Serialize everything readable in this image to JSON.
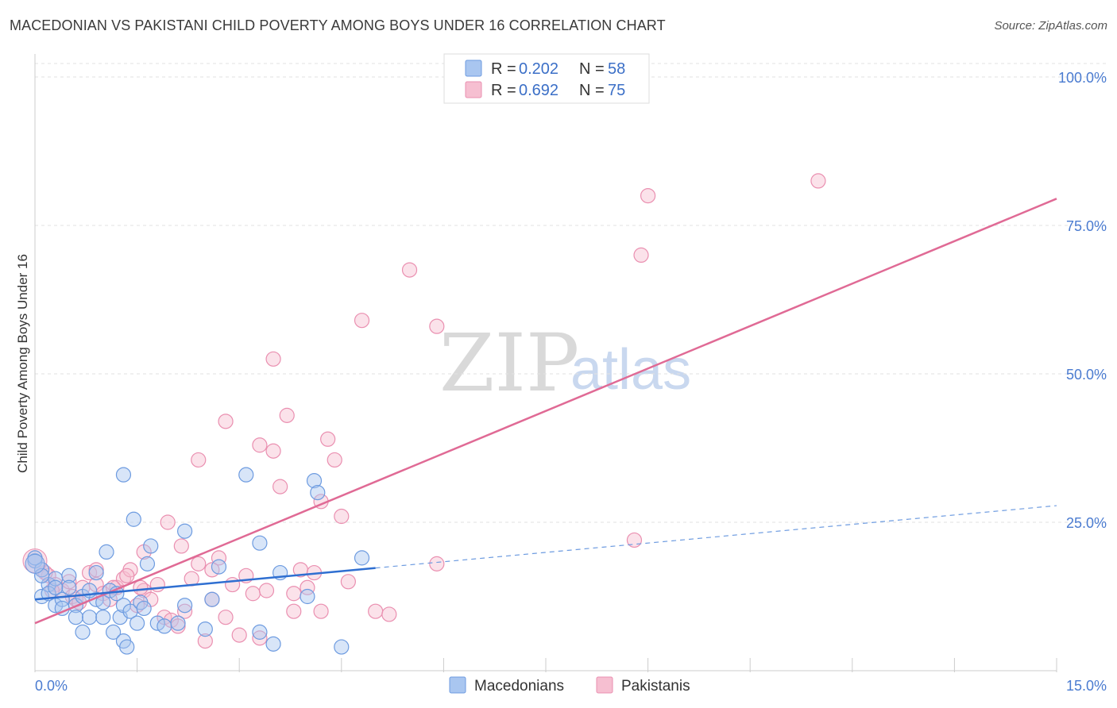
{
  "title": "MACEDONIAN VS PAKISTANI CHILD POVERTY AMONG BOYS UNDER 16 CORRELATION CHART",
  "source": "Source: ZipAtlas.com",
  "watermark": {
    "zip": "ZIP",
    "atlas": "atlas"
  },
  "colors": {
    "blue_fill": "#a9c6f0",
    "blue_stroke": "#6d9be0",
    "blue_line": "#2f6fd1",
    "pink_fill": "#f6bfd1",
    "pink_stroke": "#ea8fb0",
    "pink_line": "#e06a95",
    "accent_text": "#4a7bd0"
  },
  "legend": {
    "rows": [
      {
        "r_label": "R =",
        "r_value": "0.202",
        "n_label": "N =",
        "n_value": "58"
      },
      {
        "r_label": "R =",
        "r_value": "0.692",
        "n_label": "N =",
        "n_value": "75"
      }
    ]
  },
  "bottom_legend": {
    "series1": "Macedonians",
    "series2": "Pakistanis"
  },
  "chart_data": {
    "type": "scatter",
    "title": "MACEDONIAN VS PAKISTANI CHILD POVERTY AMONG BOYS UNDER 16 CORRELATION CHART",
    "xlabel": "",
    "ylabel": "Child Poverty Among Boys Under 16",
    "xlim": [
      0,
      15
    ],
    "ylim": [
      0,
      100
    ],
    "x_tick_labels": [
      "0.0%",
      "15.0%"
    ],
    "y_tick_labels": [
      "100.0%",
      "75.0%",
      "50.0%",
      "25.0%"
    ],
    "y_ticks": [
      100,
      75,
      50,
      25
    ],
    "series": [
      {
        "name": "Macedonians",
        "R": 0.202,
        "N": 58,
        "trend": {
          "x0": 0,
          "y0": 12.0,
          "x1": 5.0,
          "y1": 17.3,
          "dashed_to_x": 15,
          "dashed_to_y": 27.8
        },
        "points": [
          [
            0.0,
            18.5
          ],
          [
            0.1,
            17.0
          ],
          [
            0.1,
            12.5
          ],
          [
            0.2,
            14.5
          ],
          [
            0.2,
            13.0
          ],
          [
            0.3,
            11.0
          ],
          [
            0.3,
            15.5
          ],
          [
            0.4,
            12.0
          ],
          [
            0.4,
            10.5
          ],
          [
            0.5,
            16.0
          ],
          [
            0.5,
            14.0
          ],
          [
            0.6,
            11.0
          ],
          [
            0.6,
            9.0
          ],
          [
            0.7,
            12.5
          ],
          [
            0.7,
            6.5
          ],
          [
            0.8,
            9.0
          ],
          [
            0.9,
            16.5
          ],
          [
            0.9,
            12.0
          ],
          [
            1.0,
            9.0
          ],
          [
            1.0,
            11.5
          ],
          [
            1.05,
            20.0
          ],
          [
            1.1,
            13.5
          ],
          [
            1.15,
            6.5
          ],
          [
            1.2,
            13.0
          ],
          [
            1.25,
            9.0
          ],
          [
            1.3,
            5.0
          ],
          [
            1.3,
            11.0
          ],
          [
            1.3,
            33.0
          ],
          [
            1.35,
            4.0
          ],
          [
            1.4,
            10.0
          ],
          [
            1.45,
            25.5
          ],
          [
            1.5,
            8.0
          ],
          [
            1.55,
            11.5
          ],
          [
            1.6,
            10.5
          ],
          [
            1.65,
            18.0
          ],
          [
            1.7,
            21.0
          ],
          [
            1.8,
            8.0
          ],
          [
            1.9,
            7.5
          ],
          [
            2.1,
            8.0
          ],
          [
            2.2,
            11.0
          ],
          [
            2.2,
            23.5
          ],
          [
            2.5,
            7.0
          ],
          [
            2.6,
            12.0
          ],
          [
            2.7,
            17.5
          ],
          [
            3.1,
            33.0
          ],
          [
            3.3,
            6.5
          ],
          [
            3.3,
            21.5
          ],
          [
            3.5,
            4.5
          ],
          [
            3.6,
            16.5
          ],
          [
            4.0,
            12.5
          ],
          [
            4.1,
            32.0
          ],
          [
            4.15,
            30.0
          ],
          [
            4.5,
            4.0
          ],
          [
            4.8,
            19.0
          ],
          [
            0.0,
            19.0
          ],
          [
            0.1,
            16.0
          ],
          [
            0.3,
            14.0
          ],
          [
            0.8,
            13.5
          ]
        ]
      },
      {
        "name": "Pakistanis",
        "R": 0.692,
        "N": 75,
        "trend": {
          "x0": 0,
          "y0": 8.0,
          "x1": 15,
          "y1": 79.5
        },
        "points": [
          [
            0.0,
            18.5
          ],
          [
            0.1,
            17.0
          ],
          [
            0.2,
            16.0
          ],
          [
            0.3,
            14.5
          ],
          [
            0.4,
            13.5
          ],
          [
            0.5,
            15.0
          ],
          [
            0.6,
            12.0
          ],
          [
            0.7,
            14.0
          ],
          [
            0.8,
            16.5
          ],
          [
            0.9,
            14.5
          ],
          [
            1.0,
            13.0
          ],
          [
            1.1,
            12.0
          ],
          [
            1.2,
            14.0
          ],
          [
            1.3,
            15.5
          ],
          [
            1.4,
            17.0
          ],
          [
            1.5,
            11.0
          ],
          [
            1.6,
            13.5
          ],
          [
            1.7,
            12.0
          ],
          [
            1.8,
            14.5
          ],
          [
            1.9,
            9.0
          ],
          [
            2.0,
            8.5
          ],
          [
            2.1,
            7.5
          ],
          [
            2.2,
            10.0
          ],
          [
            2.3,
            15.5
          ],
          [
            2.4,
            18.0
          ],
          [
            2.5,
            5.0
          ],
          [
            2.6,
            12.0
          ],
          [
            2.7,
            19.0
          ],
          [
            2.8,
            9.0
          ],
          [
            2.9,
            14.5
          ],
          [
            3.0,
            6.0
          ],
          [
            3.1,
            16.0
          ],
          [
            3.2,
            13.0
          ],
          [
            3.3,
            38.0
          ],
          [
            3.4,
            13.5
          ],
          [
            3.5,
            37.0
          ],
          [
            3.6,
            31.0
          ],
          [
            3.7,
            43.0
          ],
          [
            3.8,
            10.0
          ],
          [
            3.9,
            17.0
          ],
          [
            4.0,
            14.0
          ],
          [
            4.1,
            16.5
          ],
          [
            4.2,
            10.0
          ],
          [
            4.3,
            39.0
          ],
          [
            4.4,
            35.5
          ],
          [
            4.5,
            26.0
          ],
          [
            4.6,
            15.0
          ],
          [
            4.8,
            59.0
          ],
          [
            5.0,
            10.0
          ],
          [
            5.2,
            9.5
          ],
          [
            5.5,
            67.5
          ],
          [
            5.9,
            58.0
          ],
          [
            5.9,
            18.0
          ],
          [
            2.4,
            35.5
          ],
          [
            2.8,
            42.0
          ],
          [
            3.5,
            52.5
          ],
          [
            1.6,
            20.0
          ],
          [
            1.95,
            25.0
          ],
          [
            2.15,
            21.0
          ],
          [
            2.6,
            17.0
          ],
          [
            8.8,
            22.0
          ],
          [
            8.9,
            70.0
          ],
          [
            9.0,
            80.0
          ],
          [
            11.5,
            82.5
          ],
          [
            0.15,
            16.5
          ],
          [
            0.25,
            13.5
          ],
          [
            0.55,
            12.5
          ],
          [
            0.65,
            11.5
          ],
          [
            0.9,
            17.0
          ],
          [
            1.15,
            14.0
          ],
          [
            1.35,
            16.0
          ],
          [
            1.55,
            14.0
          ],
          [
            3.3,
            5.5
          ],
          [
            3.8,
            13.0
          ],
          [
            4.2,
            28.5
          ]
        ]
      }
    ]
  }
}
